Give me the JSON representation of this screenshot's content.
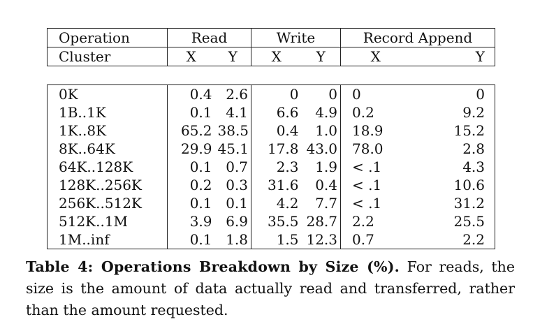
{
  "table": {
    "headers": {
      "operation": "Operation",
      "read": "Read",
      "write": "Write",
      "record_append": "Record Append",
      "cluster": "Cluster",
      "x": "X",
      "y": "Y"
    },
    "rows": [
      {
        "cluster": "0K",
        "read_x": "0.4",
        "read_y": "2.6",
        "write_x": "0",
        "write_y": "0",
        "append_x": "0",
        "append_y": "0"
      },
      {
        "cluster": "1B..1K",
        "read_x": "0.1",
        "read_y": "4.1",
        "write_x": "6.6",
        "write_y": "4.9",
        "append_x": "0.2",
        "append_y": "9.2"
      },
      {
        "cluster": "1K..8K",
        "read_x": "65.2",
        "read_y": "38.5",
        "write_x": "0.4",
        "write_y": "1.0",
        "append_x": "18.9",
        "append_y": "15.2"
      },
      {
        "cluster": "8K..64K",
        "read_x": "29.9",
        "read_y": "45.1",
        "write_x": "17.8",
        "write_y": "43.0",
        "append_x": "78.0",
        "append_y": "2.8"
      },
      {
        "cluster": "64K..128K",
        "read_x": "0.1",
        "read_y": "0.7",
        "write_x": "2.3",
        "write_y": "1.9",
        "append_x": "< .1",
        "append_y": "4.3"
      },
      {
        "cluster": "128K..256K",
        "read_x": "0.2",
        "read_y": "0.3",
        "write_x": "31.6",
        "write_y": "0.4",
        "append_x": "< .1",
        "append_y": "10.6"
      },
      {
        "cluster": "256K..512K",
        "read_x": "0.1",
        "read_y": "0.1",
        "write_x": "4.2",
        "write_y": "7.7",
        "append_x": "< .1",
        "append_y": "31.2"
      },
      {
        "cluster": "512K..1M",
        "read_x": "3.9",
        "read_y": "6.9",
        "write_x": "35.5",
        "write_y": "28.7",
        "append_x": "2.2",
        "append_y": "25.5"
      },
      {
        "cluster": "1M..inf",
        "read_x": "0.1",
        "read_y": "1.8",
        "write_x": "1.5",
        "write_y": "12.3",
        "append_x": "0.7",
        "append_y": "2.2"
      }
    ]
  },
  "caption": {
    "label": "Table 4:  Operations Breakdown by Size (%).",
    "text": " For reads, the size is the amount of data actually read and transferred, rather than the amount requested."
  }
}
